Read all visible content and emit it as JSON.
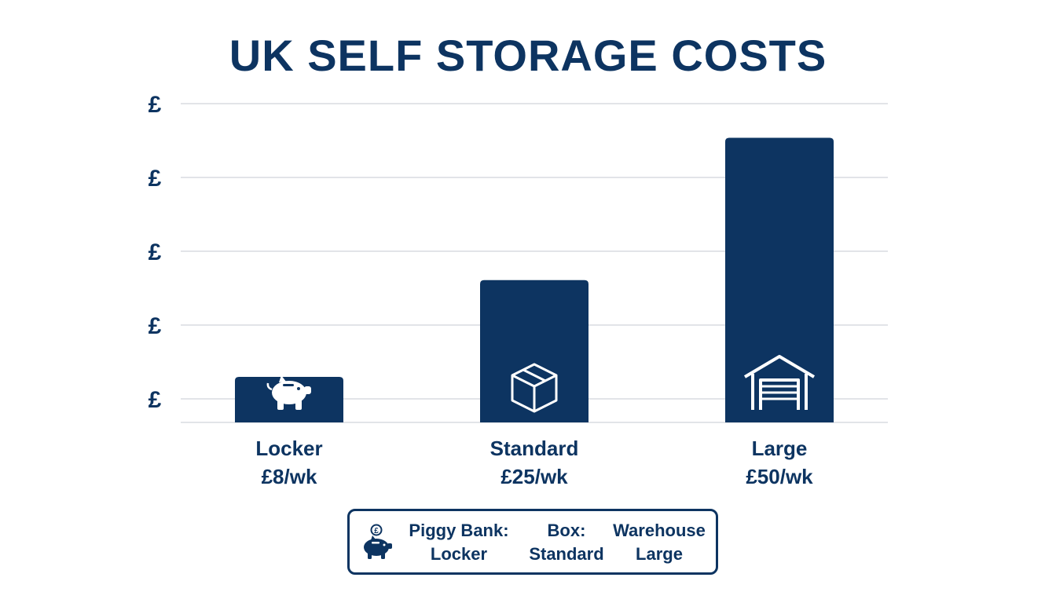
{
  "chart_data": {
    "type": "bar",
    "title": "UK SELF STORAGE COSTS",
    "xlabel": "",
    "ylabel": "",
    "y_tick_labels": [
      "£",
      "£",
      "£",
      "£",
      "£"
    ],
    "ylim": [
      0,
      56
    ],
    "grid": true,
    "legend_position": "bottom-center",
    "categories": [
      "Locker",
      "Standard",
      "Large"
    ],
    "value_labels": [
      "£8/wk",
      "£25/wk",
      "£50/wk"
    ],
    "values": [
      8,
      25,
      50
    ],
    "bar_icons": [
      "piggy-bank-icon",
      "box-icon",
      "warehouse-icon"
    ],
    "colors": {
      "bar": "#0d3461",
      "text": "#0d3461",
      "grid": "#e2e4e8",
      "icon": "#ffffff"
    }
  },
  "legend": {
    "icon": "piggy-bank-icon",
    "entries": [
      {
        "key": "Piggy Bank:",
        "value": "Locker"
      },
      {
        "key": "Box:",
        "value": "Standard"
      },
      {
        "key": "Warehouse",
        "value": "Large"
      }
    ]
  }
}
